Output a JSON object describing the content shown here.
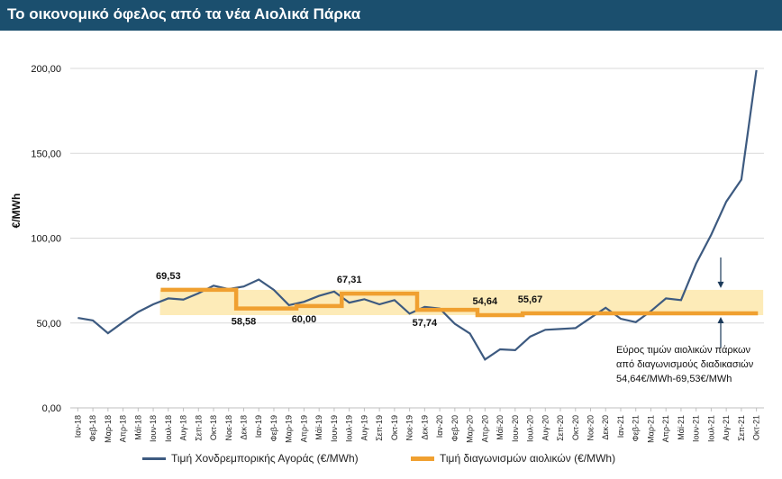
{
  "header": {
    "title": "Το οικονομικό όφελος από τα νέα Αιολικά Πάρκα"
  },
  "colors": {
    "market": "#3d5a80",
    "auction": "#f0a030",
    "band": "#fdebb8",
    "title_bg": "#1b4f6e"
  },
  "chart_data": {
    "type": "line",
    "title": "Το οικονομικό όφελος από τα νέα Αιολικά Πάρκα",
    "ylabel": "€/MWh",
    "xlabel": "",
    "ylim": [
      0,
      200
    ],
    "yticks": [
      "0,00",
      "50,00",
      "100,00",
      "150,00",
      "200,00"
    ],
    "categories": [
      "Ιαν-18",
      "Φεβ-18",
      "Μαρ-18",
      "Απρ-18",
      "Μάϊ-18",
      "Ιουν-18",
      "Ιουλ-18",
      "Αυγ-18",
      "Σεπ-18",
      "Οκτ-18",
      "Νοε-18",
      "Δεκ-18",
      "Ιαν-19",
      "Φεβ-19",
      "Μαρ-19",
      "Απρ-19",
      "Μάϊ-19",
      "Ιουν-19",
      "Ιουλ-19",
      "Αυγ-19",
      "Σεπ-19",
      "Οκτ-19",
      "Νοε-19",
      "Δεκ-19",
      "Ιαν-20",
      "Φεβ-20",
      "Μαρ-20",
      "Απρ-20",
      "Μάϊ-20",
      "Ιουν-20",
      "Ιουλ-20",
      "Αυγ-20",
      "Σεπ-20",
      "Οκτ-20",
      "Νοε-20",
      "Δεκ-20",
      "Ιαν-21",
      "Φεβ-21",
      "Μαρ-21",
      "Απρ-21",
      "Μάϊ-21",
      "Ιουν-21",
      "Ιουλ-21",
      "Αυγ-21",
      "Σεπ-21",
      "Οκτ-21"
    ],
    "series": [
      {
        "name": "Τιμή Χονδρεμπορικής Αγοράς (€/MWh)",
        "values": [
          53,
          51.5,
          44,
          50.5,
          56.5,
          61,
          64.5,
          63.8,
          67.5,
          72,
          70,
          71.5,
          75.6,
          69.5,
          60.5,
          62.5,
          66,
          68.5,
          62,
          64,
          61,
          63.5,
          55.5,
          59.5,
          58.5,
          49.5,
          43.8,
          28.5,
          34.5,
          34,
          42,
          46,
          46.5,
          47,
          53,
          59,
          52.5,
          50.5,
          57,
          64.5,
          63.5,
          85,
          102,
          121.5,
          134.5,
          199
        ]
      },
      {
        "name": "Τιμή διαγωνισμών αιολικών (€/MWh)",
        "values": [
          null,
          null,
          null,
          null,
          null,
          null,
          69.53,
          69.53,
          69.53,
          69.53,
          69.53,
          58.58,
          58.58,
          58.58,
          58.58,
          60,
          60,
          60,
          67.31,
          67.31,
          67.31,
          67.31,
          67.31,
          57.74,
          57.74,
          57.74,
          57.74,
          54.64,
          54.64,
          54.64,
          55.67,
          55.67,
          55.67,
          55.67,
          55.67,
          55.67,
          55.67,
          55.67,
          55.67,
          55.67,
          55.67,
          55.67,
          55.67,
          55.67,
          55.67,
          55.67
        ]
      }
    ],
    "band": {
      "low": 54.64,
      "high": 69.53
    },
    "data_labels": [
      {
        "text": "69,53",
        "index": 6,
        "value": 69.53
      },
      {
        "text": "58,58",
        "index": 11,
        "value": 58.58
      },
      {
        "text": "60,00",
        "index": 15,
        "value": 60
      },
      {
        "text": "67,31",
        "index": 18,
        "value": 67.31
      },
      {
        "text": "57,74",
        "index": 23,
        "value": 57.74
      },
      {
        "text": "54,64",
        "index": 27,
        "value": 54.64
      },
      {
        "text": "55,67",
        "index": 30,
        "value": 55.67
      }
    ],
    "annotation": [
      "Εύρος τιμών αιολικών πάρκων",
      "από διαγωνισμούς διαδικασιών",
      "54,64€/MWh-69,53€/MWh"
    ],
    "legend": [
      "Τιμή Χονδρεμπορικής Αγοράς (€/MWh)",
      "Τιμή διαγωνισμών αιολικών (€/MWh)"
    ]
  }
}
